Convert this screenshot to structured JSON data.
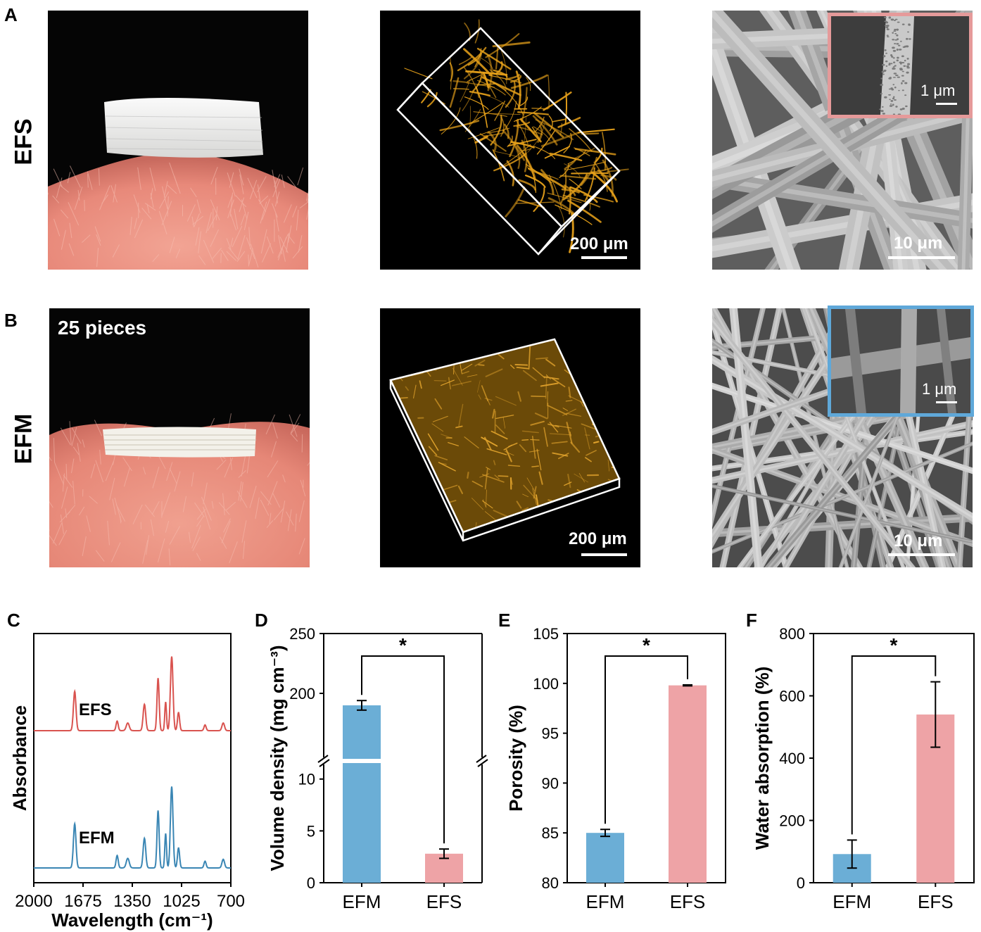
{
  "panels": {
    "A": {
      "letter": "A",
      "row_label": "EFS",
      "confocal_scale": "200 μm",
      "sem_scale": "10 μm",
      "inset_scale": "1 μm",
      "inset_border_color": "#e59a9a"
    },
    "B": {
      "letter": "B",
      "row_label": "EFM",
      "photo_label": "25 pieces",
      "confocal_scale": "200 μm",
      "sem_scale": "10 μm",
      "inset_scale": "1 μm",
      "inset_border_color": "#5fa8d9"
    }
  },
  "colors": {
    "EFM": "#6baed6",
    "EFS": "#eea3a6",
    "ftir_EFS": "#d9534f",
    "ftir_EFM": "#3a86b4"
  },
  "chart_data": [
    {
      "panel": "C",
      "type": "line",
      "xlabel": "Wavelength (cm⁻¹)",
      "ylabel": "Absorbance",
      "x_ticks": [
        "2000",
        "1675",
        "1350",
        "1025",
        "700"
      ],
      "xlim": [
        2000,
        700
      ],
      "x_reversed": true,
      "series": [
        {
          "name": "EFS",
          "offset": 1.0,
          "peaks": [
            [
              1730,
              0.82,
              12
            ],
            [
              1450,
              0.2,
              10
            ],
            [
              1380,
              0.16,
              14
            ],
            [
              1270,
              0.55,
              12
            ],
            [
              1180,
              1.1,
              10
            ],
            [
              1130,
              0.6,
              8
            ],
            [
              1090,
              1.55,
              12
            ],
            [
              1045,
              0.38,
              10
            ],
            [
              870,
              0.12,
              10
            ],
            [
              750,
              0.16,
              12
            ]
          ]
        },
        {
          "name": "EFM",
          "offset": 0.0,
          "peaks": [
            [
              1730,
              0.92,
              12
            ],
            [
              1450,
              0.26,
              10
            ],
            [
              1380,
              0.2,
              14
            ],
            [
              1270,
              0.62,
              12
            ],
            [
              1180,
              1.2,
              10
            ],
            [
              1130,
              0.72,
              8
            ],
            [
              1090,
              1.7,
              12
            ],
            [
              1045,
              0.42,
              10
            ],
            [
              870,
              0.14,
              10
            ],
            [
              750,
              0.18,
              12
            ]
          ]
        }
      ]
    },
    {
      "panel": "D",
      "type": "bar",
      "categories": [
        "EFM",
        "EFS"
      ],
      "values": [
        190,
        2.8
      ],
      "errors": [
        4,
        0.45
      ],
      "ylabel": "Volume density (mg cm⁻³)",
      "broken_axis": {
        "lower": [
          0,
          11
        ],
        "upper": [
          150,
          250
        ]
      },
      "y_ticks": [
        "0",
        "5",
        "10",
        "200",
        "250"
      ],
      "significance": "*"
    },
    {
      "panel": "E",
      "type": "bar",
      "categories": [
        "EFM",
        "EFS"
      ],
      "values": [
        85.0,
        99.8
      ],
      "errors": [
        0.35,
        0.05
      ],
      "ylabel": "Porosity (%)",
      "ylim": [
        80,
        105
      ],
      "y_ticks": [
        "80",
        "85",
        "90",
        "95",
        "100",
        "105"
      ],
      "significance": "*"
    },
    {
      "panel": "F",
      "type": "bar",
      "categories": [
        "EFM",
        "EFS"
      ],
      "values": [
        92,
        540
      ],
      "errors": [
        45,
        105
      ],
      "ylabel": "Water absorption (%)",
      "ylim": [
        0,
        800
      ],
      "y_ticks": [
        "0",
        "200",
        "400",
        "600",
        "800"
      ],
      "significance": "*"
    }
  ]
}
